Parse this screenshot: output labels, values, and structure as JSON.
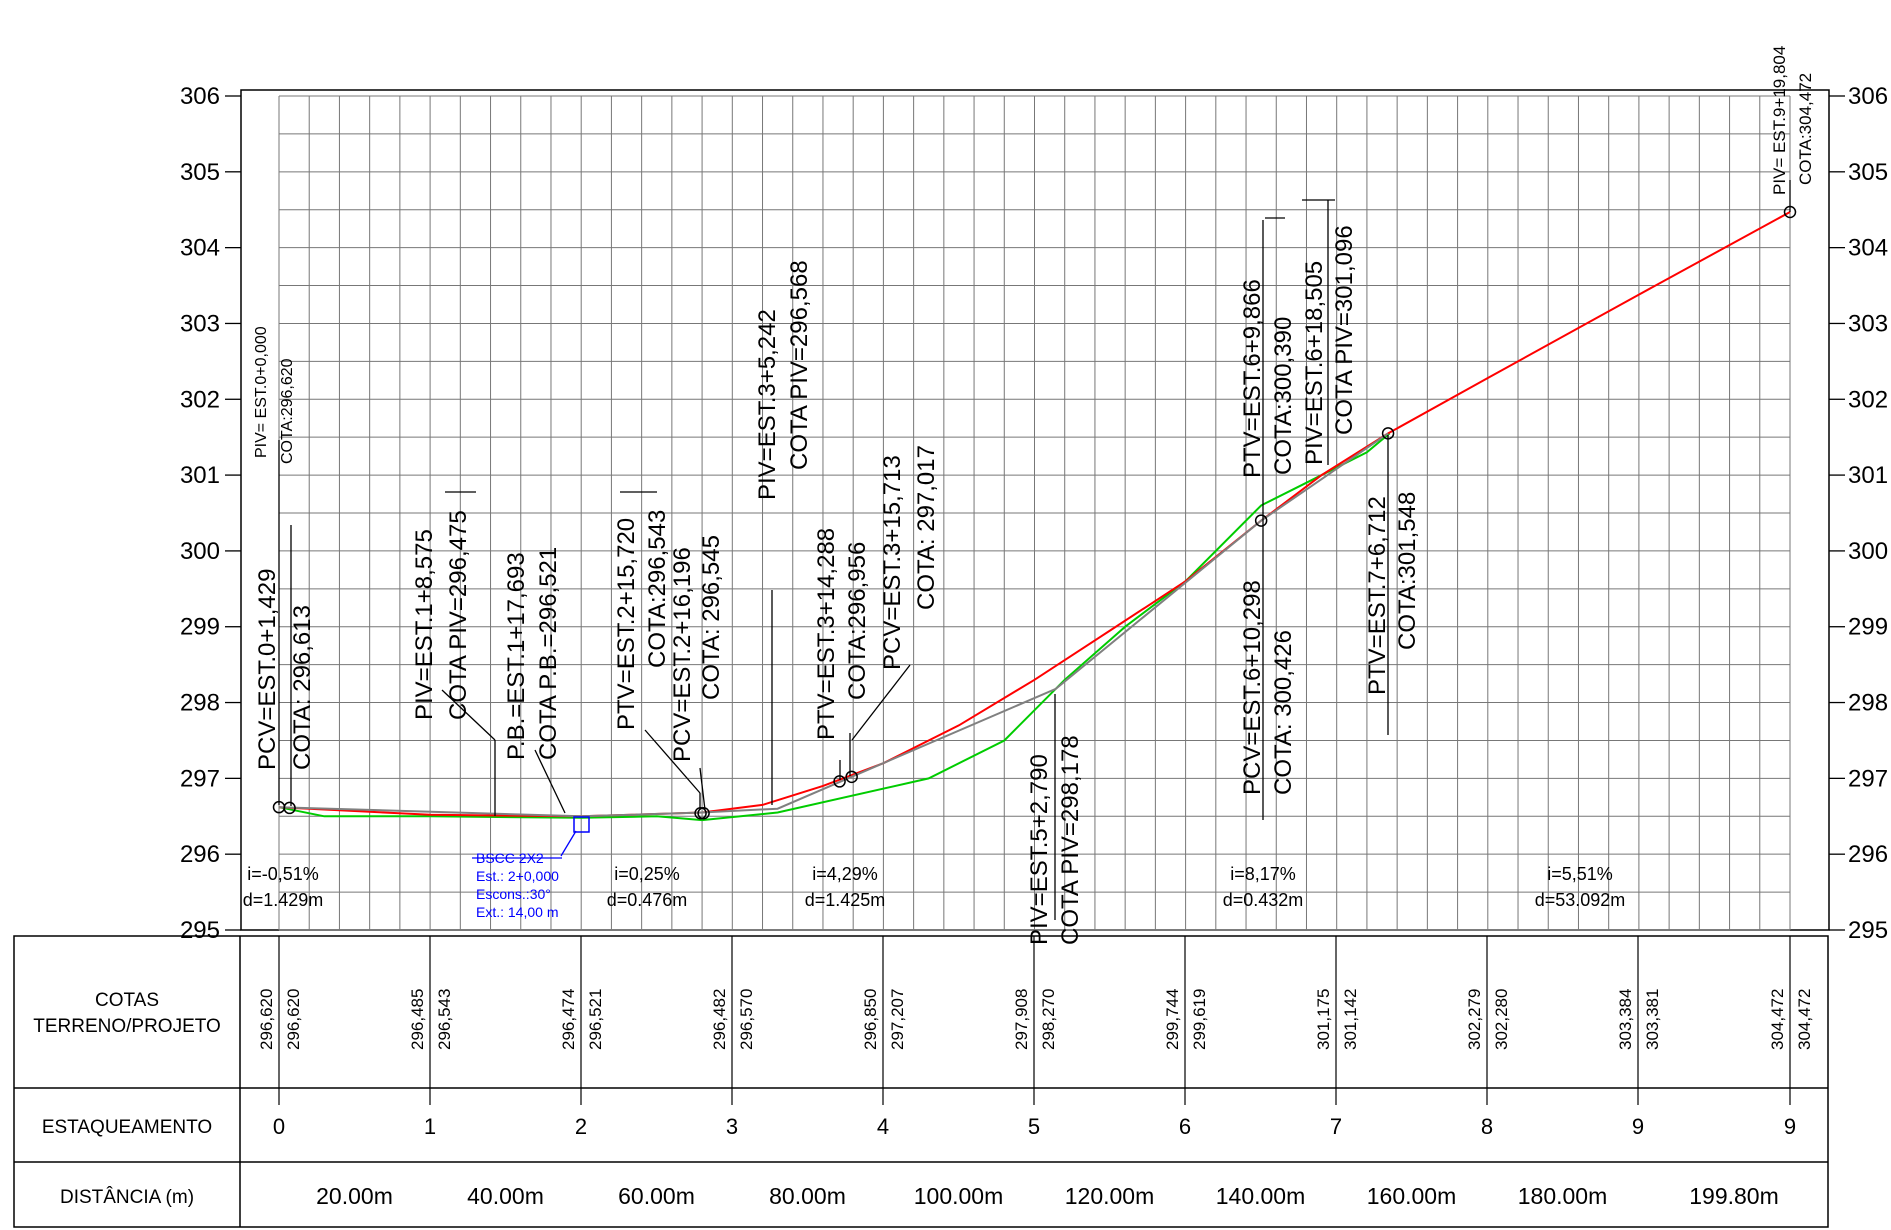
{
  "chart_data": {
    "type": "line",
    "title": "",
    "ylim": [
      295,
      306
    ],
    "y_ticks": [
      "306",
      "305",
      "304",
      "303",
      "302",
      "301",
      "300",
      "299",
      "298",
      "297",
      "296",
      "295"
    ],
    "series": [
      {
        "name": "",
        "color": "#00cc00",
        "role": "terreno",
        "points": [
          [
            0,
            296.62
          ],
          [
            0.3,
            296.5
          ],
          [
            1.0,
            296.5
          ],
          [
            2.0,
            296.48
          ],
          [
            2.5,
            296.5
          ],
          [
            2.8,
            296.45
          ],
          [
            3.3,
            296.55
          ],
          [
            4.3,
            297.0
          ],
          [
            4.8,
            297.5
          ],
          [
            5.2,
            298.3
          ],
          [
            5.6,
            299.0
          ],
          [
            6.0,
            299.6
          ],
          [
            6.5,
            300.6
          ],
          [
            6.8,
            300.9
          ],
          [
            7.2,
            301.3
          ],
          [
            7.35,
            301.55
          ]
        ]
      },
      {
        "name": "",
        "color": "#ff0000",
        "role": "greide",
        "points": [
          [
            0,
            296.62
          ],
          [
            1.0,
            296.52
          ],
          [
            2.0,
            296.5
          ],
          [
            2.8,
            296.55
          ],
          [
            3.2,
            296.65
          ],
          [
            3.6,
            296.9
          ],
          [
            4.0,
            297.2
          ],
          [
            4.5,
            297.7
          ],
          [
            5.0,
            298.3
          ],
          [
            5.5,
            298.95
          ],
          [
            6.0,
            299.6
          ],
          [
            6.5,
            300.4
          ],
          [
            6.9,
            301.0
          ],
          [
            7.34,
            301.55
          ],
          [
            8.0,
            302.28
          ],
          [
            9.0,
            303.38
          ],
          [
            10.0,
            304.47
          ]
        ]
      },
      {
        "name": "",
        "color": "#808080",
        "role": "tangentes",
        "points": [
          [
            0,
            296.62
          ],
          [
            2.0,
            296.5
          ],
          [
            2.8,
            296.55
          ],
          [
            3.3,
            296.6
          ],
          [
            5.14,
            298.18
          ],
          [
            6.5,
            300.4
          ],
          [
            7.34,
            301.55
          ]
        ]
      }
    ],
    "vertices": [
      [
        0,
        296.62
      ],
      [
        0.07,
        296.61
      ],
      [
        2.79,
        296.54
      ],
      [
        2.81,
        296.54
      ],
      [
        3.71,
        296.96
      ],
      [
        3.79,
        297.02
      ],
      [
        6.5,
        300.4
      ],
      [
        7.34,
        301.55
      ],
      [
        10.0,
        304.47
      ]
    ]
  },
  "grade_labels": [
    {
      "i": "i=-0,51%",
      "d": "d=1.429m"
    },
    {
      "i": "i=0,25%",
      "d": "d=0.476m"
    },
    {
      "i": "i=4,29%",
      "d": "d=1.425m"
    },
    {
      "i": "i=8,17%",
      "d": "d=0.432m"
    },
    {
      "i": "i=5,51%",
      "d": "d=53.092m"
    }
  ],
  "annotations": [
    {
      "a": "PIV= EST.0+0,000",
      "b": "COTA:296,620"
    },
    {
      "a": "PCV=EST.0+1,429",
      "b": "COTA: 296,613"
    },
    {
      "a": "PIV=EST.1+8,575",
      "b": "COTA PIV=296,475"
    },
    {
      "a": "P.B.=EST.1+17,693",
      "b": "COTA P.B.=296,521"
    },
    {
      "a": "PTV=EST.2+15,720",
      "b": "COTA:296,543"
    },
    {
      "a": "PCV=EST.2+16,196",
      "b": "COTA: 296,545"
    },
    {
      "a": "PIV=EST.3+5,242",
      "b": "COTA PIV=296,568"
    },
    {
      "a": "PTV=EST.3+14,288",
      "b": "COTA:296,956"
    },
    {
      "a": "PCV=EST.3+15,713",
      "b": "COTA: 297,017"
    },
    {
      "a": "PIV=EST.5+2,790",
      "b": "COTA PIV=298,178"
    },
    {
      "a": "PCV=EST.6+10,298",
      "b": "COTA: 300,426"
    },
    {
      "a": "PTV=EST.6+9,866",
      "b": "COTA:300,390"
    },
    {
      "a": "PIV=EST.6+18,505",
      "b": "COTA PIV=301,096"
    },
    {
      "a": "PTV=EST.7+6,712",
      "b": "COTA:301,548"
    },
    {
      "a": "PIV= EST.9+19,804",
      "b": "COTA:304,472"
    }
  ],
  "culvert": {
    "l1": "BSCC 2X2",
    "l2": "Est.: 2+0,000",
    "l3": "Escons.:30°",
    "l4": "Ext.: 14,00 m",
    "color": "#0000ff"
  },
  "table": {
    "row1_label_a": "COTAS",
    "row1_label_b": "TERRENO/PROJETO",
    "row2_label": "ESTAQUEAMENTO",
    "row3_label": "DISTÂNCIA (m)",
    "cotas": [
      [
        "296,620",
        "296,620"
      ],
      [
        "296,485",
        "296,543"
      ],
      [
        "296,474",
        "296,521"
      ],
      [
        "296,482",
        "296,570"
      ],
      [
        "296,850",
        "297,207"
      ],
      [
        "297,908",
        "298,270"
      ],
      [
        "299,744",
        "299,619"
      ],
      [
        "301,175",
        "301,142"
      ],
      [
        "302,279",
        "302,280"
      ],
      [
        "303,384",
        "303,381"
      ],
      [
        "304,472",
        "304,472"
      ]
    ],
    "stations": [
      "0",
      "1",
      "2",
      "3",
      "4",
      "5",
      "6",
      "7",
      "8",
      "9",
      "9"
    ],
    "distances": [
      "20.00m",
      "40.00m",
      "60.00m",
      "80.00m",
      "100.00m",
      "120.00m",
      "140.00m",
      "160.00m",
      "180.00m",
      "199.80m"
    ]
  }
}
